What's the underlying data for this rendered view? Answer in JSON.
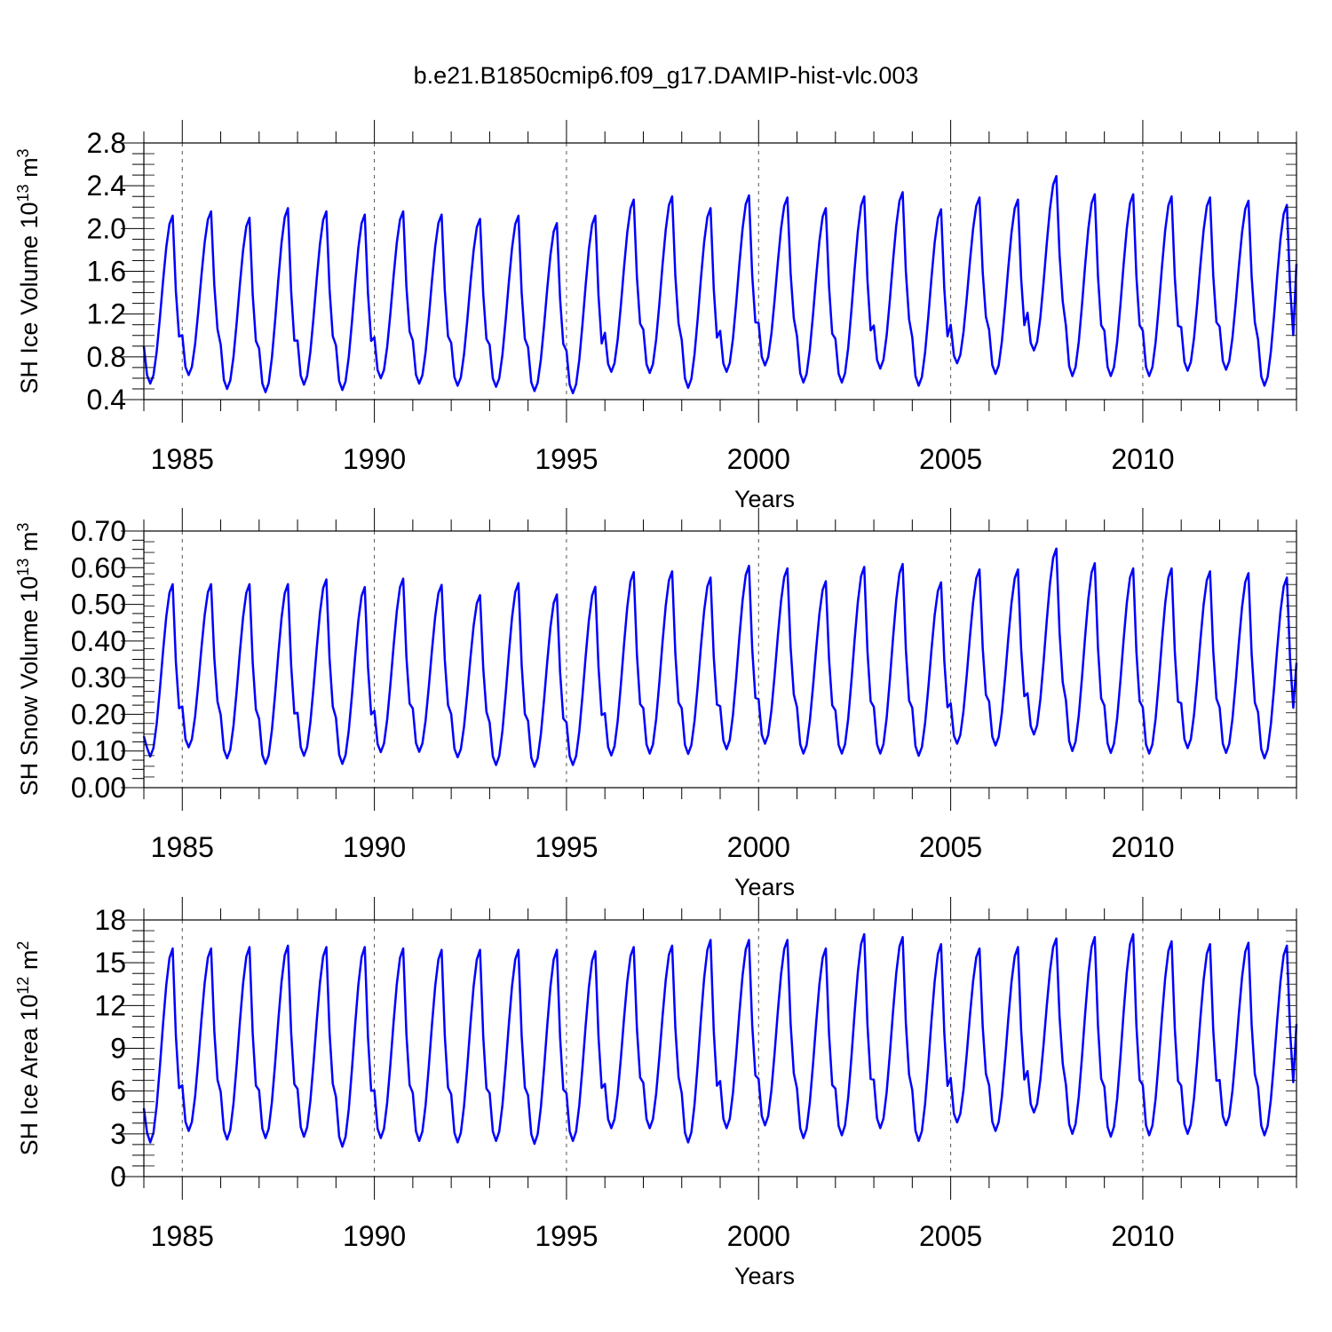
{
  "title": "b.e21.B1850cmip6.f09_g17.DAMIP-hist-vlc.003",
  "colors": {
    "series": "#0000ff",
    "axis": "#000000",
    "refline": "#555555"
  },
  "chart_data": [
    {
      "type": "line",
      "panel": "ice-volume",
      "title": "b.e21.B1850cmip6.f09_g17.DAMIP-hist-vlc.003",
      "xlabel": "Years",
      "ylabel": "SH Ice Volume 10",
      "ylabel_exp": "13",
      "ylabel_unit": "m",
      "ylabel_unit_exp": "3",
      "xlim": [
        1984.0,
        2014.0
      ],
      "ylim": [
        0.4,
        2.8
      ],
      "xticks": [
        "1985",
        "1990",
        "1995",
        "2000",
        "2005",
        "2010"
      ],
      "yticks": [
        "0.4",
        "0.8",
        "1.2",
        "1.6",
        "2.0",
        "2.4",
        "2.8"
      ],
      "ref_lines_x": [
        1985,
        1990,
        1995,
        2000,
        2005,
        2010
      ],
      "series": [
        {
          "name": "SH Ice Volume",
          "year_start": 1984.0,
          "annual_max": [
            2.12,
            2.16,
            2.1,
            2.19,
            2.16,
            2.13,
            2.16,
            2.13,
            2.09,
            2.12,
            2.05,
            2.12,
            2.27,
            2.3,
            2.19,
            2.31,
            2.29,
            2.19,
            2.3,
            2.34,
            2.18,
            2.29,
            2.27,
            2.49,
            2.32,
            2.32,
            2.3,
            2.29,
            2.26,
            2.22
          ],
          "annual_min": [
            0.55,
            0.63,
            0.5,
            0.47,
            0.54,
            0.49,
            0.6,
            0.55,
            0.53,
            0.52,
            0.48,
            0.46,
            0.66,
            0.65,
            0.51,
            0.66,
            0.72,
            0.56,
            0.56,
            0.69,
            0.53,
            0.74,
            0.64,
            0.86,
            0.62,
            0.62,
            0.62,
            0.67,
            0.68,
            0.53
          ],
          "start_value": 0.9,
          "end_value": 1.67
        }
      ]
    },
    {
      "type": "line",
      "panel": "snow-volume",
      "xlabel": "Years",
      "ylabel": "SH Snow Volume 10",
      "ylabel_exp": "13",
      "ylabel_unit": "m",
      "ylabel_unit_exp": "3",
      "xlim": [
        1984.0,
        2014.0
      ],
      "ylim": [
        0.0,
        0.7
      ],
      "xticks": [
        "1985",
        "1990",
        "1995",
        "2000",
        "2005",
        "2010"
      ],
      "yticks": [
        "0.00",
        "0.10",
        "0.20",
        "0.30",
        "0.40",
        "0.50",
        "0.60",
        "0.70"
      ],
      "ref_lines_x": [
        1985,
        1990,
        1995,
        2000,
        2005,
        2010
      ],
      "series": [
        {
          "name": "SH Snow Volume",
          "year_start": 1984.0,
          "annual_max": [
            0.555,
            0.555,
            0.555,
            0.555,
            0.568,
            0.547,
            0.57,
            0.553,
            0.525,
            0.558,
            0.527,
            0.548,
            0.588,
            0.59,
            0.573,
            0.605,
            0.598,
            0.563,
            0.602,
            0.61,
            0.56,
            0.595,
            0.595,
            0.652,
            0.612,
            0.598,
            0.598,
            0.59,
            0.585,
            0.573
          ],
          "annual_min": [
            0.085,
            0.11,
            0.08,
            0.065,
            0.087,
            0.065,
            0.097,
            0.098,
            0.083,
            0.062,
            0.057,
            0.062,
            0.088,
            0.093,
            0.092,
            0.105,
            0.12,
            0.093,
            0.093,
            0.093,
            0.087,
            0.12,
            0.115,
            0.145,
            0.1,
            0.095,
            0.093,
            0.108,
            0.095,
            0.08
          ],
          "start_value": 0.14,
          "end_value": 0.34
        }
      ]
    },
    {
      "type": "line",
      "panel": "ice-area",
      "xlabel": "Years",
      "ylabel": "SH Ice Area 10",
      "ylabel_exp": "12",
      "ylabel_unit": "m",
      "ylabel_unit_exp": "2",
      "xlim": [
        1984.0,
        2014.0
      ],
      "ylim": [
        0,
        18
      ],
      "xticks": [
        "1985",
        "1990",
        "1995",
        "2000",
        "2005",
        "2010"
      ],
      "yticks": [
        "0",
        "3",
        "6",
        "9",
        "12",
        "15",
        "18"
      ],
      "ref_lines_x": [
        1985,
        1990,
        1995,
        2000,
        2005,
        2010
      ],
      "series": [
        {
          "name": "SH Ice Area",
          "year_start": 1984.0,
          "annual_max": [
            16.0,
            16.0,
            16.1,
            16.2,
            16.1,
            16.1,
            16.0,
            15.9,
            15.9,
            15.9,
            15.9,
            15.8,
            16.1,
            16.2,
            16.6,
            16.6,
            16.6,
            16.0,
            17.0,
            16.8,
            16.3,
            16.0,
            16.1,
            16.7,
            16.8,
            17.0,
            16.5,
            16.3,
            16.4,
            16.2
          ],
          "annual_min": [
            2.4,
            3.2,
            2.6,
            2.7,
            2.8,
            2.1,
            2.7,
            2.5,
            2.4,
            2.5,
            2.3,
            2.5,
            3.4,
            3.4,
            2.4,
            3.4,
            3.6,
            2.7,
            2.9,
            3.4,
            2.5,
            3.8,
            3.2,
            4.5,
            3.0,
            2.8,
            2.9,
            3.0,
            3.6,
            2.9
          ],
          "start_value": 4.8,
          "end_value": 10.7
        }
      ]
    }
  ]
}
